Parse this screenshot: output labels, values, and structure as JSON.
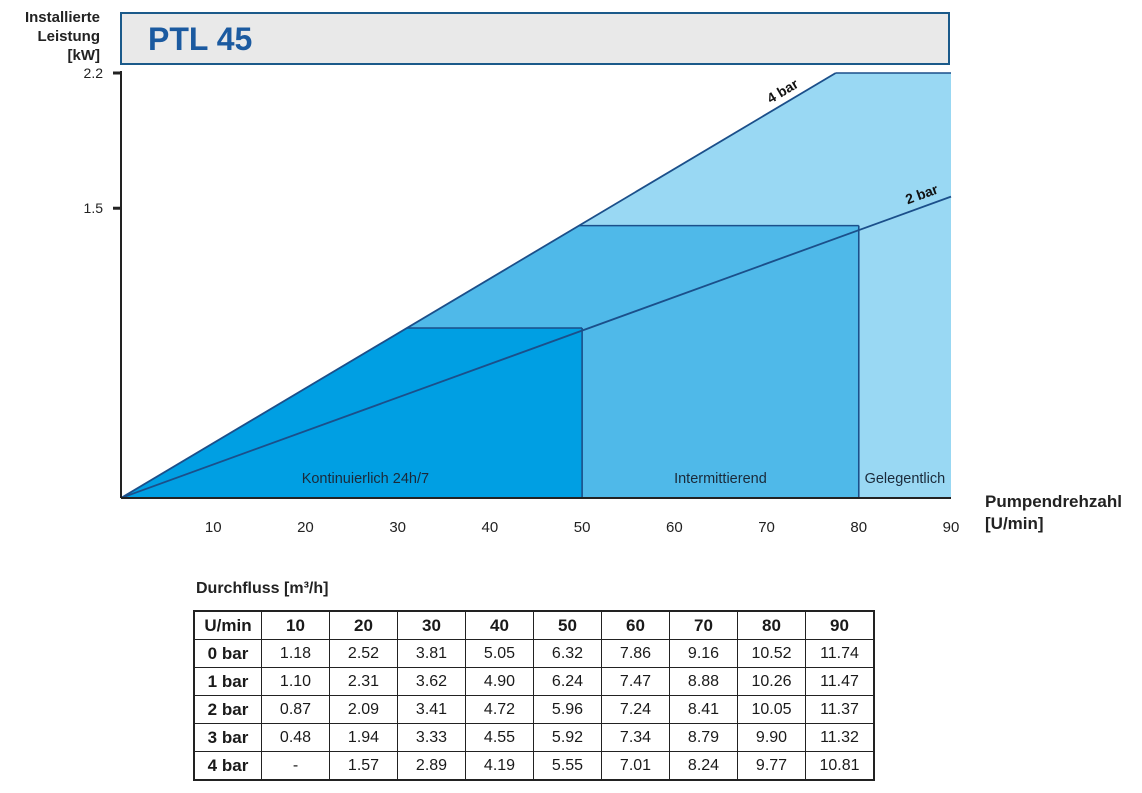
{
  "header": {
    "title": "PTL 45",
    "ylabel": "Installierte\nLeistung\n[kW]",
    "xlabel": "Pumpendrehzahl\n[U/min]"
  },
  "chart_data": {
    "type": "area",
    "title": "PTL 45",
    "ylabel": "Installierte Leistung [kW]",
    "xlabel": "Pumpendrehzahl [U/min]",
    "xlim": [
      0,
      90
    ],
    "ylim": [
      0,
      2.2
    ],
    "xticks": [
      10,
      20,
      30,
      40,
      50,
      60,
      70,
      80,
      90
    ],
    "yticks": [
      1.5,
      2.2
    ],
    "ytick_labels": [
      "1.5",
      "2.2"
    ],
    "series": [
      {
        "name": "4 bar",
        "x": [
          0,
          77.5
        ],
        "y": [
          0,
          2.2
        ]
      },
      {
        "name": "2 bar",
        "x": [
          0,
          90
        ],
        "y": [
          0,
          1.56
        ]
      }
    ],
    "zones": [
      {
        "label": "Kontinuierlich 24h/7",
        "x_from": 0,
        "x_to": 50,
        "power_cap": 0.88,
        "color": "#009fe3"
      },
      {
        "label": "Intermittierend",
        "x_from": 50,
        "x_to": 80,
        "power_cap": 1.41,
        "color": "#4fb9e9"
      },
      {
        "label": "Gelegentlich",
        "x_from": 80,
        "x_to": 90,
        "power_cap": 2.2,
        "color": "#99d8f3"
      }
    ],
    "grid": false
  },
  "table": {
    "title": "Durchfluss [m³/h]",
    "header": [
      "U/min",
      "10",
      "20",
      "30",
      "40",
      "50",
      "60",
      "70",
      "80",
      "90"
    ],
    "rows": [
      {
        "label": "0 bar",
        "values": [
          "1.18",
          "2.52",
          "3.81",
          "5.05",
          "6.32",
          "7.86",
          "9.16",
          "10.52",
          "11.74"
        ]
      },
      {
        "label": "1 bar",
        "values": [
          "1.10",
          "2.31",
          "3.62",
          "4.90",
          "6.24",
          "7.47",
          "8.88",
          "10.26",
          "11.47"
        ]
      },
      {
        "label": "2 bar",
        "values": [
          "0.87",
          "2.09",
          "3.41",
          "4.72",
          "5.96",
          "7.24",
          "8.41",
          "10.05",
          "11.37"
        ]
      },
      {
        "label": "3 bar",
        "values": [
          "0.48",
          "1.94",
          "3.33",
          "4.55",
          "5.92",
          "7.34",
          "8.79",
          "9.90",
          "11.32"
        ]
      },
      {
        "label": "4 bar",
        "values": [
          "-",
          "1.57",
          "2.89",
          "4.19",
          "5.55",
          "7.01",
          "8.24",
          "9.77",
          "10.81"
        ]
      }
    ]
  },
  "colors": {
    "line": "#1b4f8a",
    "title_bg": "#e9e9e9",
    "title_text": "#1b5aa0"
  }
}
